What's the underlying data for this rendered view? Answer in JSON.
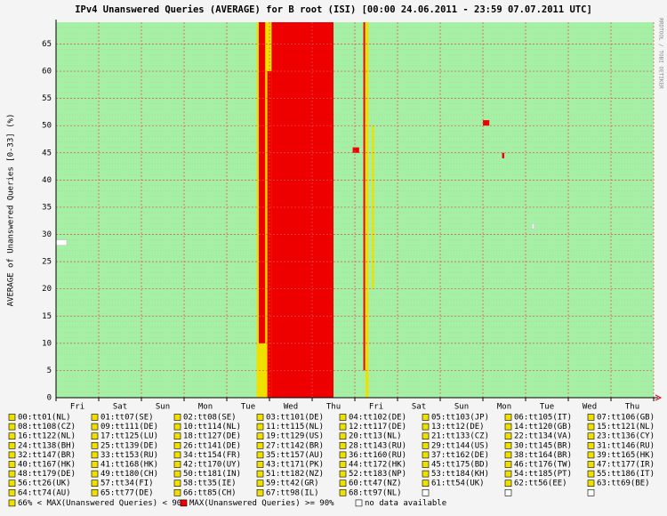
{
  "chart_data": {
    "type": "heatmap",
    "title": "IPv4 Unanswered Queries (AVERAGE)  for  B root (ISI)  [00:00 24.06.2011 - 23:59 07.07.2011 UTC]",
    "y_label": "AVERAGE of Unanswered Queries [0-33] (%)",
    "watermark": "RRDTOOL / TOBI OETIKER",
    "categories": [
      "Fri",
      "Sat",
      "Sun",
      "Mon",
      "Tue",
      "Wed",
      "Thu",
      "Fri",
      "Sat",
      "Sun",
      "Mon",
      "Tue",
      "Wed",
      "Thu"
    ],
    "xlim": [
      0,
      14
    ],
    "xticks": [
      0,
      1,
      2,
      3,
      4,
      5,
      6,
      7,
      8,
      9,
      10,
      11,
      12,
      13,
      14
    ],
    "ylim": [
      0,
      69
    ],
    "yticks": [
      0,
      5,
      10,
      15,
      20,
      25,
      30,
      35,
      40,
      45,
      50,
      55,
      60,
      65
    ],
    "grid": true,
    "background": "#a4f0a4",
    "probe_color": "#f0e000",
    "probes": [
      "00:tt01(NL)",
      "01:tt07(SE)",
      "02:tt08(SE)",
      "03:tt101(DE)",
      "04:tt102(DE)",
      "05:tt103(JP)",
      "06:tt105(IT)",
      "07:tt106(GB)",
      "08:tt108(CZ)",
      "09:tt111(DE)",
      "10:tt114(NL)",
      "11:tt115(NL)",
      "12:tt117(DE)",
      "13:tt12(DE)",
      "14:tt120(GB)",
      "15:tt121(NL)",
      "16:tt122(NL)",
      "17:tt125(LU)",
      "18:tt127(DE)",
      "19:tt129(US)",
      "20:tt13(NL)",
      "21:tt133(CZ)",
      "22:tt134(VA)",
      "23:tt136(CY)",
      "24:tt138(BH)",
      "25:tt139(DE)",
      "26:tt141(DE)",
      "27:tt142(BR)",
      "28:tt143(RU)",
      "29:tt144(US)",
      "30:tt145(BR)",
      "31:tt146(RU)",
      "32:tt147(BR)",
      "33:tt153(RU)",
      "34:tt154(FR)",
      "35:tt157(AU)",
      "36:tt160(RU)",
      "37:tt162(DE)",
      "38:tt164(BR)",
      "39:tt165(HK)",
      "40:tt167(HK)",
      "41:tt168(HK)",
      "42:tt170(UY)",
      "43:tt171(PK)",
      "44:tt172(HK)",
      "45:tt175(BD)",
      "46:tt176(TW)",
      "47:tt177(IR)",
      "48:tt179(DE)",
      "49:tt180(CH)",
      "50:tt181(IN)",
      "51:tt182(NZ)",
      "52:tt183(NP)",
      "53:tt184(KH)",
      "54:tt185(PT)",
      "55:tt186(IT)",
      "56:tt26(UK)",
      "57:tt34(FI)",
      "58:tt35(IE)",
      "59:tt42(GR)",
      "60:tt47(NZ)",
      "61:tt54(UK)",
      "62:tt56(EE)",
      "63:tt69(BE)",
      "64:tt74(AU)",
      "65:tt77(DE)",
      "66:tt85(CH)",
      "67:tt98(IL)",
      "68:tt97(NL)"
    ],
    "series": [
      {
        "name": "66% < MAX(Unanswered Queries) < 90%",
        "color": "#f0e000",
        "segments": [
          {
            "rows": [
              0,
              69
            ],
            "x": [
              4.7,
              5.05
            ]
          },
          {
            "rows": [
              0,
              69
            ],
            "x": [
              7.25,
              7.32
            ]
          },
          {
            "rows": [
              20,
              50
            ],
            "x": [
              7.4,
              7.45
            ]
          }
        ]
      },
      {
        "name": "MAX(Unanswered Queries) >= 90%",
        "color": "#ee0000",
        "segments": [
          {
            "rows": [
              0,
              69
            ],
            "x": [
              5.05,
              6.5
            ]
          },
          {
            "rows": [
              10,
              69
            ],
            "x": [
              4.75,
              4.9
            ]
          },
          {
            "rows": [
              0,
              60
            ],
            "x": [
              4.95,
              5.05
            ]
          },
          {
            "rows": [
              45,
              46
            ],
            "x": [
              6.95,
              7.1
            ]
          },
          {
            "rows": [
              50,
              51
            ],
            "x": [
              10.0,
              10.15
            ]
          },
          {
            "rows": [
              44,
              45
            ],
            "x": [
              10.45,
              10.5
            ]
          },
          {
            "rows": [
              5,
              69
            ],
            "x": [
              7.2,
              7.24
            ]
          }
        ]
      },
      {
        "name": "no data available",
        "color": "#ffffff",
        "segments": [
          {
            "rows": [
              28,
              29
            ],
            "x": [
              0,
              0.25
            ]
          },
          {
            "rows": [
              31,
              32
            ],
            "x": [
              11.15,
              11.2
            ]
          }
        ]
      }
    ]
  }
}
